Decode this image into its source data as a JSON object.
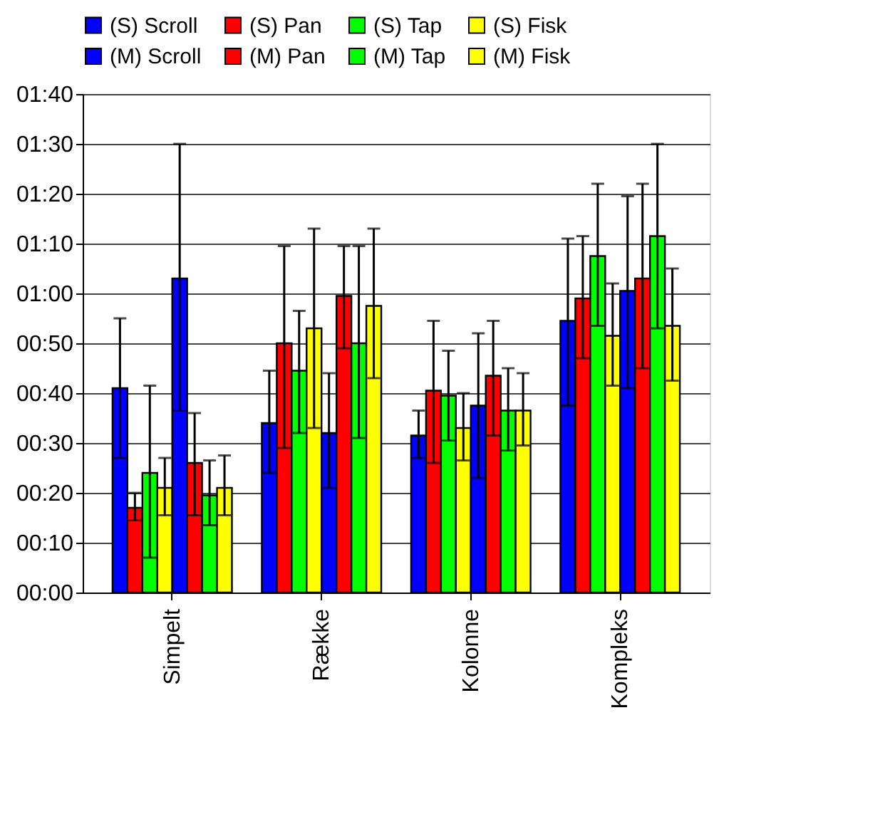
{
  "chart_data": {
    "type": "bar",
    "categories": [
      "Simpelt",
      "Række",
      "Kolonne",
      "Kompleks"
    ],
    "ylim": [
      0,
      100
    ],
    "yticks": [
      {
        "value": 0,
        "label": "00:00"
      },
      {
        "value": 10,
        "label": "00:10"
      },
      {
        "value": 20,
        "label": "00:20"
      },
      {
        "value": 30,
        "label": "00:30"
      },
      {
        "value": 40,
        "label": "00:40"
      },
      {
        "value": 50,
        "label": "00:50"
      },
      {
        "value": 60,
        "label": "01:00"
      },
      {
        "value": 70,
        "label": "01:10"
      },
      {
        "value": 80,
        "label": "01:20"
      },
      {
        "value": 90,
        "label": "01:30"
      },
      {
        "value": 100,
        "label": "01:40"
      }
    ],
    "grid": "y",
    "legend": "top",
    "series": [
      {
        "name": "(S) Scroll",
        "color": "#0000ff",
        "values": [
          41,
          34,
          31.5,
          54.5
        ],
        "errors": [
          [
            27,
            55
          ],
          [
            24,
            44.5
          ],
          [
            27,
            36.5
          ],
          [
            37.5,
            71
          ]
        ]
      },
      {
        "name": "(S) Pan",
        "color": "#ff0000",
        "values": [
          17,
          50,
          40.5,
          59
        ],
        "errors": [
          [
            14.5,
            20
          ],
          [
            29,
            69.5
          ],
          [
            26,
            54.5
          ],
          [
            47,
            71.5
          ]
        ]
      },
      {
        "name": "(S) Tap",
        "color": "#00ff00",
        "values": [
          24,
          44.5,
          39.5,
          67.5
        ],
        "errors": [
          [
            7,
            41.5
          ],
          [
            32,
            56.5
          ],
          [
            30.5,
            48.5
          ],
          [
            53.5,
            82
          ]
        ]
      },
      {
        "name": "(S) Fisk",
        "color": "#ffff00",
        "values": [
          21,
          53,
          33,
          51.5
        ],
        "errors": [
          [
            15.5,
            27
          ],
          [
            33,
            73
          ],
          [
            26.5,
            40
          ],
          [
            41.5,
            62
          ]
        ]
      },
      {
        "name": "(M) Scroll",
        "color": "#0000ff",
        "values": [
          63,
          32,
          37.5,
          60.5
        ],
        "errors": [
          [
            36.5,
            90
          ],
          [
            21,
            44
          ],
          [
            23,
            52
          ],
          [
            41,
            79.5
          ]
        ]
      },
      {
        "name": "(M) Pan",
        "color": "#ff0000",
        "values": [
          26,
          59.5,
          43.5,
          63
        ],
        "errors": [
          [
            15.5,
            36
          ],
          [
            49,
            69.5
          ],
          [
            31.5,
            54.5
          ],
          [
            45,
            82
          ]
        ]
      },
      {
        "name": "(M) Tap",
        "color": "#00ff00",
        "values": [
          19.5,
          50,
          36.5,
          71.5
        ],
        "errors": [
          [
            13.5,
            26.5
          ],
          [
            31,
            69.5
          ],
          [
            28.5,
            45
          ],
          [
            53,
            90
          ]
        ]
      },
      {
        "name": "(M) Fisk",
        "color": "#ffff00",
        "values": [
          21,
          57.5,
          36.5,
          53.5
        ],
        "errors": [
          [
            15.5,
            27.5
          ],
          [
            43,
            73
          ],
          [
            29.5,
            44
          ],
          [
            42.5,
            65
          ]
        ]
      }
    ]
  }
}
